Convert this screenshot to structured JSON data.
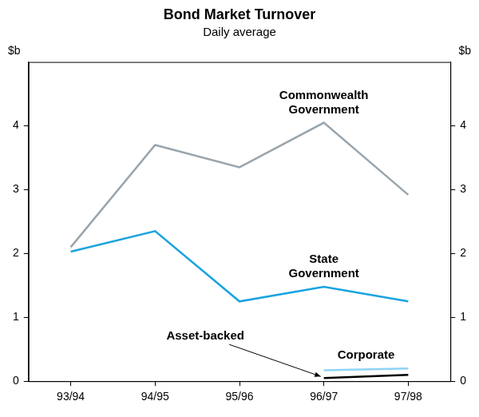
{
  "chart_data": {
    "type": "line",
    "title": "Bond Market Turnover",
    "subtitle": "Daily average",
    "ylabel": "$b",
    "categories": [
      "93/94",
      "94/95",
      "95/96",
      "96/97",
      "97/98"
    ],
    "series": [
      {
        "name": "Commonwealth Government",
        "color": "#9aa5ad",
        "values": [
          2.1,
          3.7,
          3.35,
          4.05,
          2.92
        ]
      },
      {
        "name": "State Government",
        "color": "#1aa3e0",
        "values": [
          2.03,
          2.35,
          1.25,
          1.48,
          1.25
        ]
      },
      {
        "name": "Corporate",
        "color": "#8fd3f5",
        "values": [
          null,
          null,
          null,
          0.17,
          0.2
        ]
      },
      {
        "name": "Asset-backed",
        "color": "#000000",
        "values": [
          null,
          null,
          null,
          0.05,
          0.1
        ]
      }
    ],
    "ylim": [
      0,
      5
    ],
    "yticks": [
      0,
      1,
      2,
      3,
      4
    ],
    "grid": false
  }
}
